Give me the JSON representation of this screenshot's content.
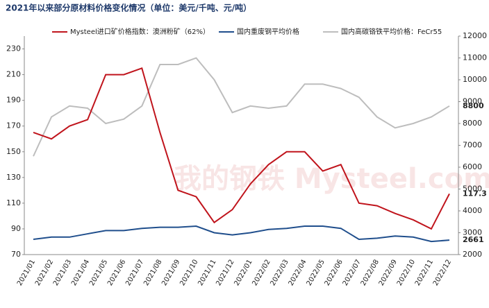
{
  "chart_data": {
    "type": "line",
    "title": "2021年以来部分原材料价格变化情况（单位：美元/千吨、元/吨）",
    "watermark": "我的钢铁 Mysteel.com",
    "categories": [
      "2021/01",
      "2021/02",
      "2021/03",
      "2021/04",
      "2021/05",
      "2021/06",
      "2021/07",
      "2021/08",
      "2021/09",
      "2021/10",
      "2021/11",
      "2021/12",
      "2022/01",
      "2022/02",
      "2022/03",
      "2022/04",
      "2022/05",
      "2022/06",
      "2022/07",
      "2022/08",
      "2022/09",
      "2022/10",
      "2022/11",
      "2022/12"
    ],
    "series": [
      {
        "name": "Mysteel进口矿价格指数：澳洲粉矿（62%）",
        "color": "#c0141c",
        "axis": "y",
        "values": [
          165,
          160,
          170,
          175,
          210,
          210,
          215,
          165,
          120,
          115,
          95,
          105,
          125,
          140,
          150,
          150,
          135,
          140,
          110,
          108,
          102,
          97,
          90,
          117.3
        ],
        "end_label": "117.3"
      },
      {
        "name": "国内重废钢平均价格",
        "color": "#1f4e8c",
        "axis": "y2",
        "values": [
          2700,
          2800,
          2800,
          2950,
          3100,
          3100,
          3200,
          3250,
          3250,
          3300,
          3000,
          2900,
          3000,
          3150,
          3200,
          3300,
          3300,
          3200,
          2700,
          2750,
          2850,
          2800,
          2600,
          2661
        ],
        "end_label": "2661"
      },
      {
        "name": "国内高碳铬铁平均价格：FeCr55",
        "color": "#bdbdbd",
        "axis": "y2",
        "values": [
          6500,
          8300,
          8800,
          8700,
          8000,
          8200,
          8800,
          10700,
          10700,
          11000,
          10000,
          8500,
          8800,
          8700,
          8800,
          9800,
          9800,
          9600,
          9200,
          8300,
          7800,
          8000,
          8300,
          8800
        ],
        "end_label": "8800"
      }
    ],
    "ylim": [
      70,
      240
    ],
    "yticks": [
      70,
      90,
      110,
      130,
      150,
      170,
      190,
      210,
      230
    ],
    "y2lim": [
      2000,
      12000
    ],
    "y2ticks": [
      2000,
      3000,
      4000,
      5000,
      6000,
      7000,
      8000,
      9000,
      10000,
      11000,
      12000
    ]
  }
}
